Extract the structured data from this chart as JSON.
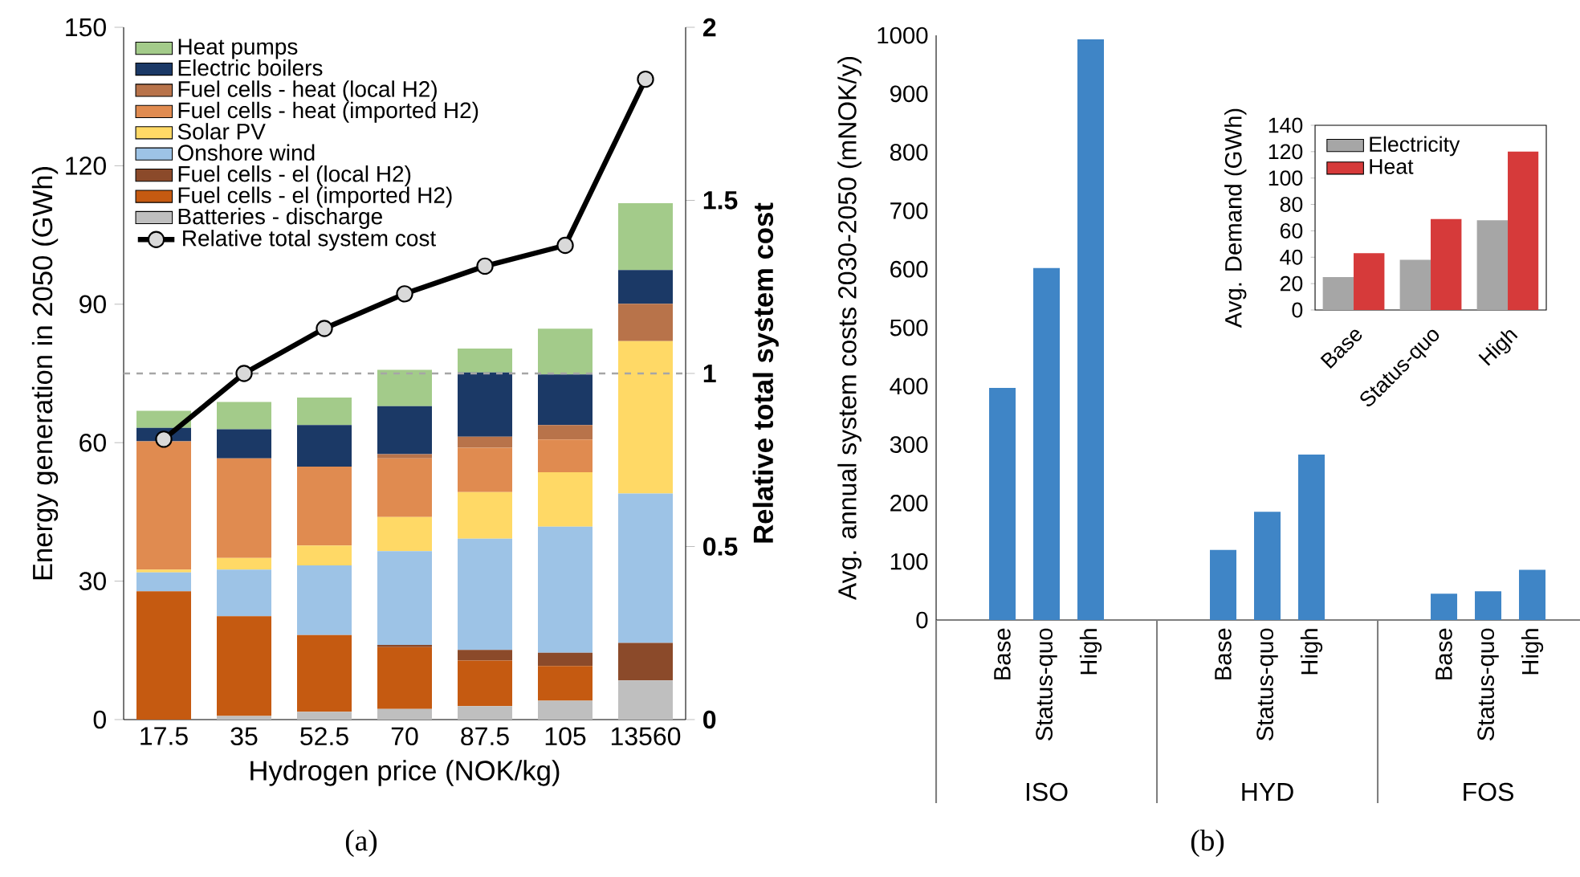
{
  "chart_data": [
    {
      "type": "bar",
      "stacked": true,
      "xlabel": "Hydrogen price (NOK/kg)",
      "ylabel": "Energy generation in 2050 (GWh)",
      "y2label": "Relative total system cost",
      "categories": [
        "17.5",
        "35",
        "52.5",
        "70",
        "87.5",
        "105",
        "13560"
      ],
      "ylim": [
        0,
        150
      ],
      "yticks": [
        0,
        30,
        60,
        90,
        120,
        150
      ],
      "y2lim": [
        0,
        2
      ],
      "y2ticks": [
        0,
        0.5,
        1,
        1.5,
        2
      ],
      "legend": "top left",
      "ref_lines": [
        {
          "axis": "y2",
          "value": 1,
          "color": "#a6a6a6",
          "line_style": "dashed"
        }
      ],
      "annotations": [
        "(a)"
      ],
      "series": [
        {
          "name": "Batteries - discharge",
          "color": "#bfbfbf",
          "values": [
            0,
            0.8,
            1.7,
            2.3,
            2.9,
            4.1,
            8.5
          ]
        },
        {
          "name": "Fuel cells - el (imported H2)",
          "color": "#c55a11",
          "values": [
            27.8,
            21.6,
            16.6,
            13.4,
            9.9,
            7.5,
            0
          ]
        },
        {
          "name": "Fuel cells - el (local H2)",
          "color": "#8b4a2a",
          "values": [
            0,
            0,
            0,
            0.5,
            2.3,
            2.9,
            8.1
          ]
        },
        {
          "name": "Onshore wind",
          "color": "#9dc3e6",
          "values": [
            4.1,
            10.1,
            15.1,
            20.3,
            24.1,
            27.3,
            32.4
          ]
        },
        {
          "name": "Solar PV",
          "color": "#ffd966",
          "values": [
            0.6,
            2.5,
            4.3,
            7.4,
            10.1,
            11.8,
            33.0
          ]
        },
        {
          "name": "Fuel cells - heat (imported H2)",
          "color": "#e08b50",
          "values": [
            27.8,
            21.6,
            17.1,
            12.7,
            9.6,
            7.1,
            0
          ]
        },
        {
          "name": "Fuel cells - heat (local H2)",
          "color": "#b8734a",
          "values": [
            0,
            0,
            0,
            0.9,
            2.4,
            3.1,
            8.1
          ]
        },
        {
          "name": "Electric boilers",
          "color": "#1b3966",
          "values": [
            2.9,
            6.3,
            9.0,
            10.4,
            13.9,
            11.0,
            7.3
          ]
        },
        {
          "name": "Heat pumps",
          "color": "#a3cb8a",
          "values": [
            3.7,
            5.9,
            6.0,
            7.9,
            5.2,
            9.9,
            14.5
          ]
        },
        {
          "name": "Relative total system cost",
          "type": "line",
          "axis": "y2",
          "marker": "circle",
          "color": "#000000",
          "values": [
            0.81,
            1.0,
            1.13,
            1.23,
            1.31,
            1.37,
            1.85
          ]
        }
      ]
    },
    {
      "type": "bar",
      "ylabel": "Avg. annual system costs 2030-2050 (mNOK/y)",
      "categories": [
        "Base",
        "Status-quo",
        "High",
        null,
        null,
        "Base",
        "Status-quo",
        "High",
        null,
        null,
        "Base",
        "Status-quo",
        "High"
      ],
      "values": [
        397,
        602,
        993,
        null,
        null,
        120,
        185,
        283,
        null,
        null,
        45,
        49,
        86
      ],
      "color": "#3f85c6",
      "ylim": [
        0,
        1000
      ],
      "yticks": [
        0,
        100,
        200,
        300,
        400,
        500,
        600,
        700,
        800,
        900,
        1000
      ],
      "annotations": [
        "ISO",
        "HYD",
        "FOS",
        "(b)"
      ]
    },
    {
      "type": "bar",
      "ylabel": "Avg. Demand (GWh)",
      "categories": [
        "Base",
        "Status-quo",
        "High"
      ],
      "ylim": [
        0,
        140
      ],
      "yticks": [
        0,
        20,
        40,
        60,
        80,
        100,
        120,
        140
      ],
      "legend": "top left",
      "series": [
        {
          "name": "Electricity",
          "color": "#a6a6a6",
          "values": [
            25,
            38,
            68
          ]
        },
        {
          "name": "Heat",
          "color": "#d63a3a",
          "values": [
            43,
            69,
            120
          ]
        }
      ]
    }
  ]
}
